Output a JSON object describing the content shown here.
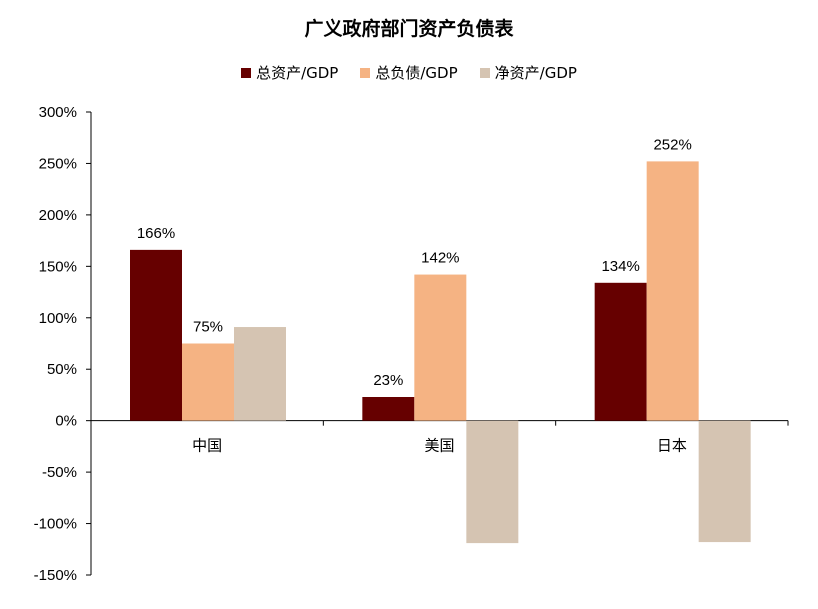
{
  "chart_data": {
    "type": "bar",
    "title": "广义政府部门资产负债表",
    "categories": [
      "中国",
      "美国",
      "日本"
    ],
    "series": [
      {
        "name": "总资产/GDP",
        "color": "#660000",
        "values": [
          166,
          23,
          134
        ],
        "labels": [
          "166%",
          "23%",
          "134%"
        ]
      },
      {
        "name": "总负债/GDP",
        "color": "#F5B383",
        "values": [
          75,
          142,
          252
        ],
        "labels": [
          "75%",
          "142%",
          "252%"
        ]
      },
      {
        "name": "净资产/GDP",
        "color": "#D5C4B2",
        "values": [
          91,
          -119,
          -118
        ],
        "labels": [
          "",
          "",
          ""
        ]
      }
    ],
    "ylim": [
      -150,
      300
    ],
    "yticks": [
      300,
      250,
      200,
      150,
      100,
      50,
      0,
      -50,
      -100,
      -150
    ],
    "ytick_labels": [
      "300%",
      "250%",
      "200%",
      "150%",
      "100%",
      "50%",
      "0%",
      "-50%",
      "-100%",
      "-150%"
    ],
    "legend_position": "top-center",
    "grid": false
  }
}
